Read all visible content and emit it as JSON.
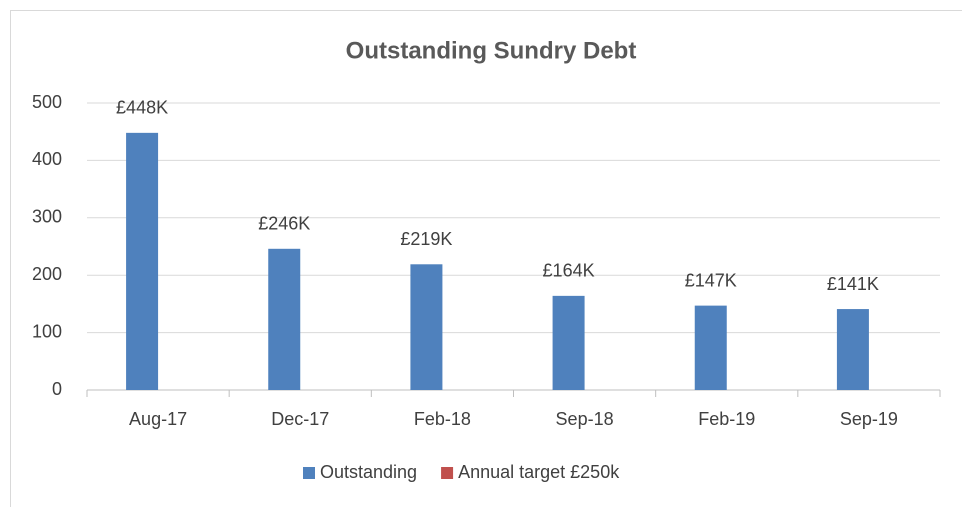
{
  "chart_data": {
    "type": "bar",
    "title": "Outstanding Sundry Debt",
    "categories": [
      "Aug-17",
      "Dec-17",
      "Feb-18",
      "Sep-18",
      "Feb-19",
      "Sep-19"
    ],
    "series": [
      {
        "name": "Outstanding",
        "color": "#4f81bd",
        "values": [
          448,
          246,
          219,
          164,
          147,
          141
        ],
        "value_labels": [
          "£448K",
          "£246K",
          "£219K",
          "£164K",
          "£147K",
          "£141K"
        ]
      },
      {
        "name": "Annual target £250k",
        "color": "#c0504d",
        "values": [
          null,
          null,
          null,
          null,
          null,
          null
        ]
      }
    ],
    "ylim": [
      0,
      500
    ],
    "yticks": [
      0,
      100,
      200,
      300,
      400,
      500
    ],
    "grid": true,
    "legend": "bottom"
  }
}
